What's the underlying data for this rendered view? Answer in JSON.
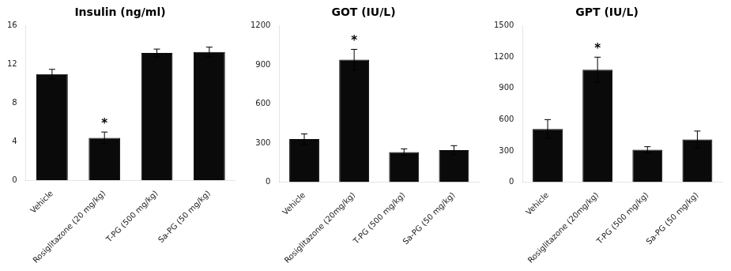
{
  "chart_data": [
    {
      "type": "bar",
      "title": "Insulin (ng/ml)",
      "categories": [
        "Vehicle",
        "Rosiglitazone (20 mg/kg)",
        "T-PG (500 mg/kg)",
        "Sa-PG (50 mg/kg)"
      ],
      "values": [
        11.0,
        4.4,
        13.2,
        13.3
      ],
      "errors": [
        0.5,
        0.6,
        0.4,
        0.5
      ],
      "color": "#0a0a0a",
      "ylim": [
        0,
        16
      ],
      "yticks": [
        0,
        4,
        8,
        12,
        16
      ],
      "grid": false,
      "annotations": [
        {
          "text": "*",
          "index": 1
        }
      ]
    },
    {
      "type": "bar",
      "title": "GOT (IU/L)",
      "categories": [
        "Vehicle",
        "Rosiglitazone (20mg/kg)",
        "T-PG (500 mg/kg)",
        "Sa-PG (50 mg/kg)"
      ],
      "values": [
        330,
        940,
        230,
        245
      ],
      "errors": [
        40,
        80,
        25,
        35
      ],
      "color": "#0a0a0a",
      "ylim": [
        0,
        1200
      ],
      "yticks": [
        0,
        300,
        600,
        900,
        1200
      ],
      "grid": false,
      "annotations": [
        {
          "text": "*",
          "index": 1
        }
      ]
    },
    {
      "type": "bar",
      "title": "GPT (IU/L)",
      "categories": [
        "Vehicle",
        "Rosiglitazone (20mg/kg)",
        "T-PG (500 mg/kg)",
        "Sa-PG (50 mg/kg)"
      ],
      "values": [
        510,
        1080,
        310,
        410
      ],
      "errors": [
        90,
        120,
        30,
        80
      ],
      "color": "#0a0a0a",
      "ylim": [
        0,
        1500
      ],
      "yticks": [
        0,
        300,
        600,
        900,
        1200,
        1500
      ],
      "grid": false,
      "annotations": [
        {
          "text": "*",
          "index": 1
        }
      ]
    }
  ]
}
